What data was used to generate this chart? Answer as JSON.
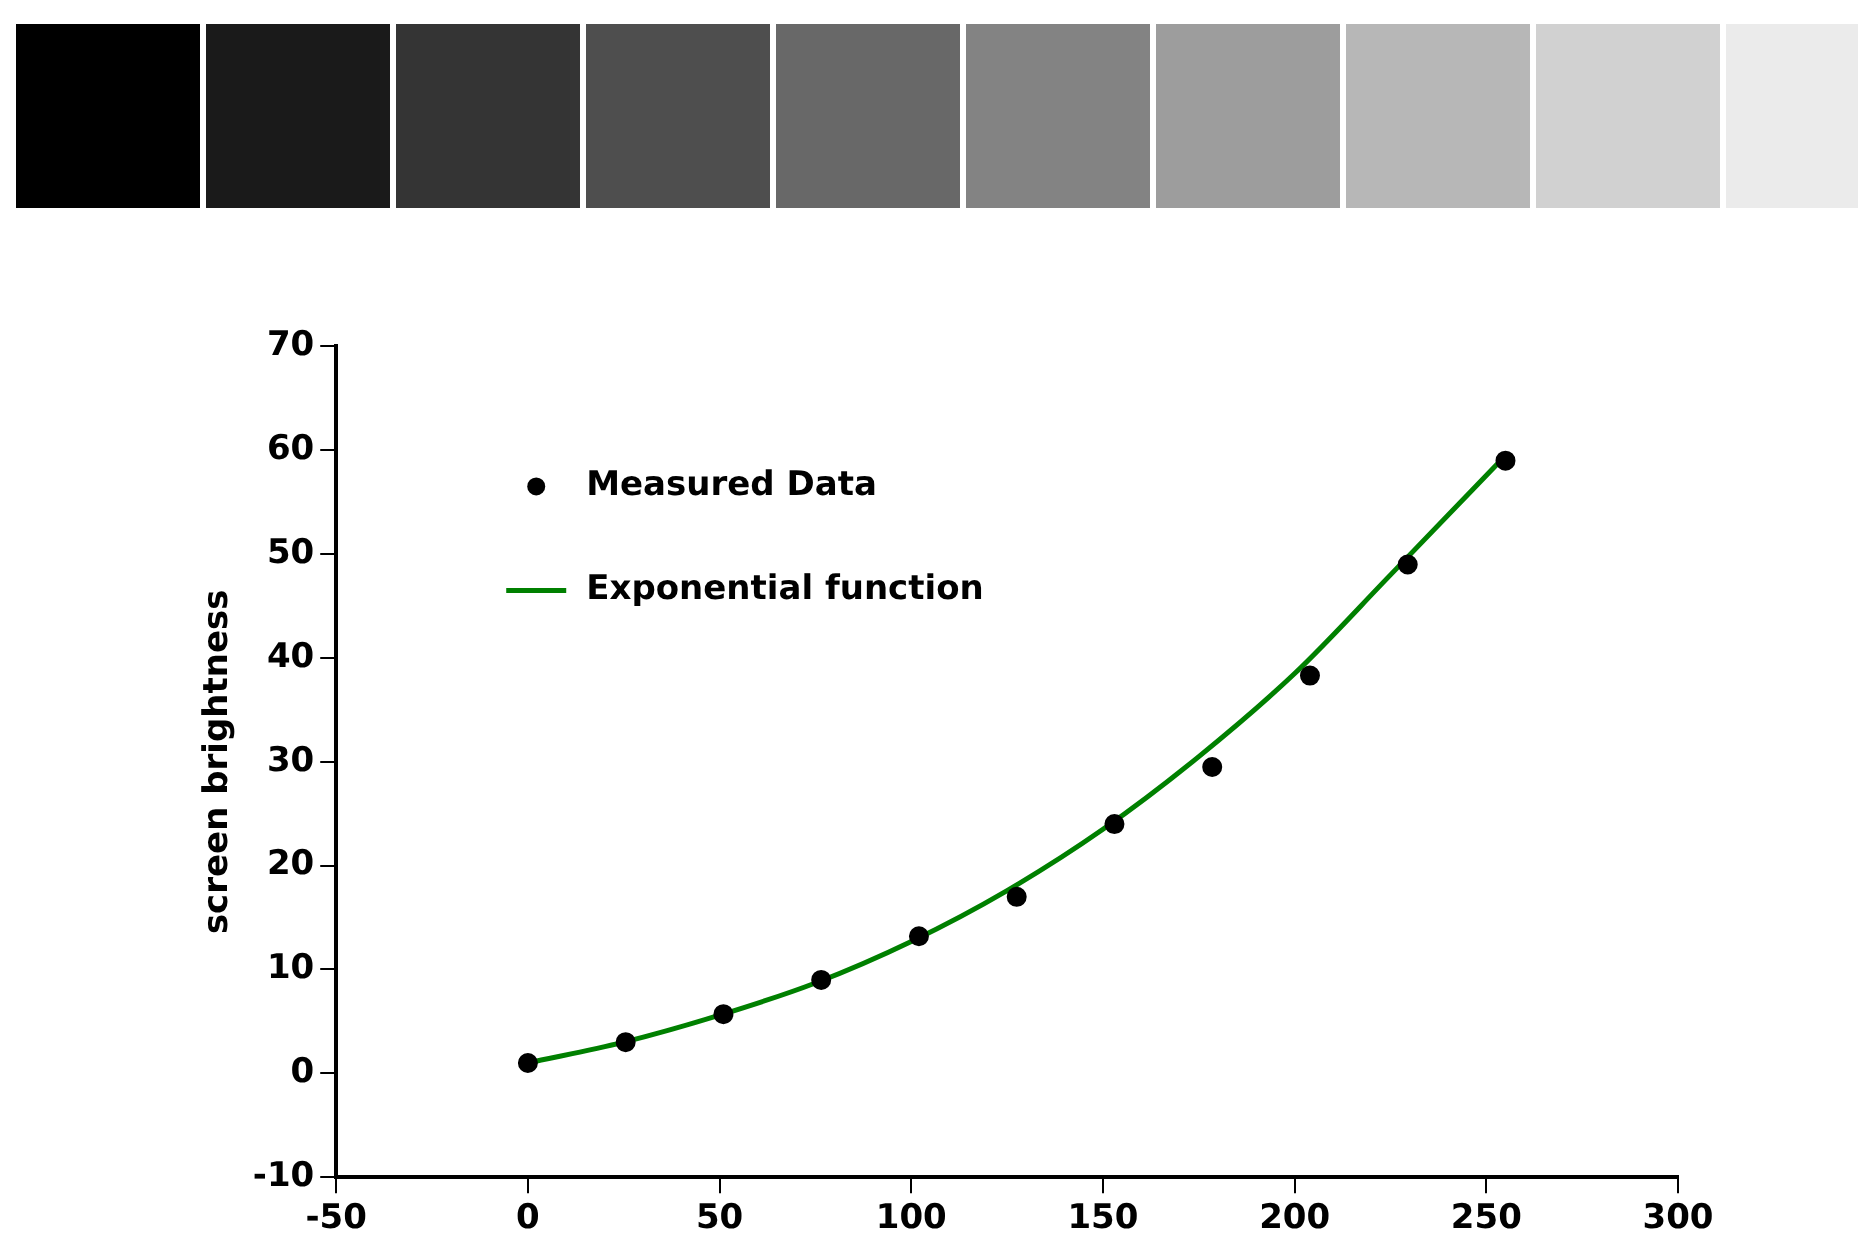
{
  "chart_data": {
    "type": "scatter",
    "xlabel": null,
    "ylabel": "screen brightness",
    "xlim": [
      -50,
      300
    ],
    "xticks": [
      -50,
      0,
      50,
      100,
      150,
      200,
      250,
      300
    ],
    "ylim": [
      -10,
      70
    ],
    "yticks": [
      -10,
      0,
      10,
      20,
      30,
      40,
      50,
      60,
      70
    ],
    "grid": false,
    "legend": "top left",
    "series": [
      {
        "name": "Measured Data",
        "color": "#000000",
        "marker": "circle",
        "x": [
          0,
          25.5,
          51,
          76.5,
          102,
          127.5,
          153,
          178.5,
          204,
          229.5,
          255
        ],
        "values": [
          1,
          3,
          5.7,
          9,
          13.2,
          17,
          24,
          29.5,
          38.3,
          49,
          59
        ]
      },
      {
        "name": "Exponential function",
        "type": "line",
        "color": "#008000",
        "marker": "none",
        "line_style": "solid",
        "x": [
          0,
          25,
          50,
          75,
          100,
          125,
          150,
          175,
          200,
          225,
          255
        ],
        "values": [
          1,
          3,
          5.6,
          8.7,
          12.7,
          17.6,
          23.5,
          30.5,
          38.5,
          48,
          59.5
        ]
      }
    ]
  }
}
